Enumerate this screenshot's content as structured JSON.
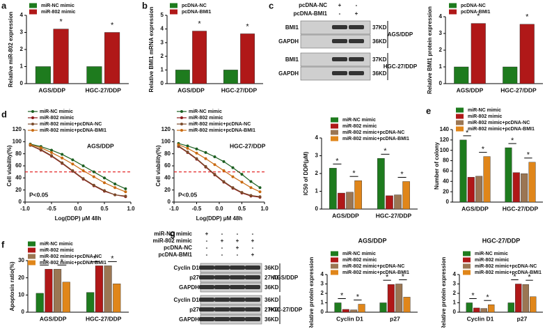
{
  "panel_labels": [
    "a",
    "b",
    "c",
    "d",
    "e",
    "f",
    "g"
  ],
  "chart_data": [
    {
      "type": "bar",
      "ylabel": "Relative miR-802 expression",
      "categories": [
        "AGS/DDP",
        "HGC-27/DDP"
      ],
      "ylim": [
        0,
        4
      ],
      "yticks": [
        0,
        1,
        2,
        3,
        4
      ],
      "series": [
        {
          "name": "miR-NC mimic",
          "color": "#1e7b1e",
          "values": [
            1,
            1
          ]
        },
        {
          "name": "miR-802 mimic",
          "color": "#b01818",
          "values": [
            3.2,
            3.0
          ]
        }
      ],
      "significance": [
        {
          "label": "*",
          "category": 0,
          "series": [
            1
          ]
        },
        {
          "label": "*",
          "category": 1,
          "series": [
            1
          ]
        }
      ]
    },
    {
      "type": "bar",
      "ylabel": "Relative BMI1 mRNA expression",
      "categories": [
        "AGS/DDP",
        "HGC-27/DDP"
      ],
      "ylim": [
        0,
        5
      ],
      "yticks": [
        0,
        1,
        2,
        3,
        4,
        5
      ],
      "series": [
        {
          "name": "pcDNA-NC",
          "color": "#1e7b1e",
          "values": [
            1,
            1
          ]
        },
        {
          "name": "pcDNA-BMI1",
          "color": "#b01818",
          "values": [
            3.85,
            3.65
          ]
        }
      ],
      "significance": [
        {
          "label": "*",
          "category": 0,
          "series": [
            1
          ]
        },
        {
          "label": "*",
          "category": 1,
          "series": [
            1
          ]
        }
      ]
    },
    {
      "type": "bar",
      "ylabel": "Relative BMI1 protein expression",
      "categories": [
        "AGS/DDP",
        "HGC-27/DDP"
      ],
      "ylim": [
        0,
        4
      ],
      "yticks": [
        0,
        1,
        2,
        3,
        4
      ],
      "series": [
        {
          "name": "pcDNA-NC",
          "color": "#1e7b1e",
          "values": [
            1,
            1
          ]
        },
        {
          "name": "pcDNA-BMI1",
          "color": "#b01818",
          "values": [
            3.6,
            3.55
          ]
        }
      ],
      "significance": [
        {
          "label": "*",
          "category": 0,
          "series": [
            1
          ]
        },
        {
          "label": "*",
          "category": 1,
          "series": [
            1
          ]
        }
      ]
    },
    {
      "type": "line",
      "ylabel": "Cell viability(%)",
      "xlabel": "Log(DDP) μM 48h",
      "annotations": [
        "AGS/DDP",
        "P<0.05"
      ],
      "x": [
        -0.9,
        -0.7,
        -0.5,
        -0.3,
        -0.1,
        0.1,
        0.3,
        0.5,
        0.7,
        0.9
      ],
      "xlim": [
        -1,
        1
      ],
      "xticks": [
        {
          "value": -1,
          "label": "-1.0"
        },
        -0.5,
        {
          "value": 0,
          "label": "0.0"
        },
        0.5,
        {
          "value": 1,
          "label": "1.0"
        }
      ],
      "ylim": [
        0,
        120
      ],
      "yticks": [
        0,
        20,
        40,
        60,
        80,
        100,
        120
      ],
      "hline": 50,
      "hline_color": "#e01010",
      "series": [
        {
          "name": "miR-NC mimic",
          "color": "#1b5e20",
          "values": [
            96,
            92,
            86,
            79,
            70,
            60,
            50,
            40,
            30,
            22
          ]
        },
        {
          "name": "miR-802 mimic",
          "color": "#8b1a1a",
          "values": [
            94,
            86,
            76,
            64,
            51,
            38,
            27,
            18,
            12,
            9
          ]
        },
        {
          "name": "miR-802 mimic+pcDNA-NC",
          "color": "#7a4a2a",
          "values": [
            94,
            87,
            77,
            65,
            52,
            39,
            28,
            19,
            12,
            10
          ]
        },
        {
          "name": "miR-802 mimic+pcDNA-BMI1",
          "color": "#c96a10",
          "values": [
            95,
            90,
            82,
            73,
            63,
            52,
            42,
            32,
            24,
            17
          ]
        }
      ]
    },
    {
      "type": "line",
      "ylabel": "Cell viability(%)",
      "xlabel": "Log(DDP) μM 48h",
      "annotations": [
        "HGC-27/DDP",
        "P<0.05"
      ],
      "x": [
        -0.9,
        -0.7,
        -0.5,
        -0.3,
        -0.1,
        0.1,
        0.3,
        0.5,
        0.7,
        0.9
      ],
      "xlim": [
        -1,
        1
      ],
      "xticks": [
        {
          "value": -1,
          "label": "-1.0"
        },
        -0.5,
        {
          "value": 0,
          "label": "0.0"
        },
        0.5,
        {
          "value": 1,
          "label": "1.0"
        }
      ],
      "ylim": [
        0,
        120
      ],
      "yticks": [
        0,
        20,
        40,
        60,
        80,
        100,
        120
      ],
      "hline": 50,
      "hline_color": "#e01010",
      "series": [
        {
          "name": "miR-NC mimic",
          "color": "#1b5e20",
          "values": [
            97,
            93,
            88,
            82,
            75,
            67,
            57,
            46,
            34,
            24
          ]
        },
        {
          "name": "miR-802 mimic",
          "color": "#8b1a1a",
          "values": [
            92,
            82,
            71,
            58,
            45,
            33,
            23,
            15,
            10,
            8
          ]
        },
        {
          "name": "miR-802 mimic+pcDNA-NC",
          "color": "#7a4a2a",
          "values": [
            93,
            83,
            72,
            59,
            46,
            34,
            24,
            16,
            11,
            9
          ]
        },
        {
          "name": "miR-802 mimic+pcDNA-BMI1",
          "color": "#c96a10",
          "values": [
            95,
            89,
            81,
            72,
            62,
            52,
            42,
            33,
            24,
            17
          ]
        }
      ]
    },
    {
      "type": "bar",
      "ylabel": "IC50 of DDP(μM)",
      "categories": [
        "AGS/DDP",
        "HGC-27/DDP"
      ],
      "ylim": [
        0,
        4
      ],
      "yticks": [
        0,
        1,
        2,
        3,
        4
      ],
      "series": [
        {
          "name": "miR-NC mimic",
          "color": "#1e7b1e",
          "values": [
            2.3,
            2.85
          ]
        },
        {
          "name": "miR-802 mimic",
          "color": "#b01818",
          "values": [
            0.9,
            0.75
          ]
        },
        {
          "name": "miR-802 mimic+pcDNA-NC",
          "color": "#9b7653",
          "values": [
            0.95,
            0.8
          ]
        },
        {
          "name": "miR-802 mimic+pcDNA-BMI1",
          "color": "#e0861a",
          "values": [
            1.6,
            1.55
          ]
        }
      ],
      "significance": [
        {
          "label": "*",
          "category": 0,
          "series": [
            0,
            1
          ]
        },
        {
          "label": "*",
          "category": 0,
          "series": [
            2,
            3
          ]
        },
        {
          "label": "*",
          "category": 1,
          "series": [
            0,
            1
          ]
        },
        {
          "label": "*",
          "category": 1,
          "series": [
            2,
            3
          ]
        }
      ]
    },
    {
      "type": "bar",
      "ylabel": "Number of colony",
      "categories": [
        "AGS/DDP",
        "HGC-27/DDP"
      ],
      "ylim": [
        0,
        140
      ],
      "yticks": [
        0,
        20,
        40,
        60,
        80,
        100,
        120,
        140
      ],
      "series": [
        {
          "name": "miR-NC mimic",
          "color": "#1e7b1e",
          "values": [
            120,
            105
          ]
        },
        {
          "name": "miR-802 mimic",
          "color": "#b01818",
          "values": [
            48,
            57
          ]
        },
        {
          "name": "miR-802 mimic+pcDNA-NC",
          "color": "#9b7653",
          "values": [
            50,
            55
          ]
        },
        {
          "name": "miR-802 mimic+pcDNA-BMI1",
          "color": "#e0861a",
          "values": [
            88,
            77
          ]
        }
      ],
      "significance": [
        {
          "label": "*",
          "category": 0,
          "series": [
            0,
            1
          ]
        },
        {
          "label": "*",
          "category": 0,
          "series": [
            2,
            3
          ]
        },
        {
          "label": "*",
          "category": 1,
          "series": [
            0,
            1
          ]
        },
        {
          "label": "*",
          "category": 1,
          "series": [
            2,
            3
          ]
        }
      ]
    },
    {
      "type": "bar",
      "ylabel": "Apoptosis ratio(%)",
      "categories": [
        "AGS/DDP",
        "HGC-27/DDP"
      ],
      "ylim": [
        0,
        30
      ],
      "yticks": [
        0,
        10,
        20,
        30
      ],
      "series": [
        {
          "name": "miR-NC mimic",
          "color": "#1e7b1e",
          "values": [
            11,
            11.5
          ]
        },
        {
          "name": "miR-802 mimic",
          "color": "#b01818",
          "values": [
            25,
            27
          ]
        },
        {
          "name": "miR-802 mimic+pcDNA-NC",
          "color": "#9b7653",
          "values": [
            25,
            27
          ]
        },
        {
          "name": "miR-802 mimic+pcDNA-BMI1",
          "color": "#e0861a",
          "values": [
            17.5,
            16.5
          ]
        }
      ],
      "significance": [
        {
          "label": "*",
          "category": 0,
          "series": [
            0,
            1
          ]
        },
        {
          "label": "*",
          "category": 0,
          "series": [
            2,
            3
          ]
        },
        {
          "label": "*",
          "category": 1,
          "series": [
            0,
            1
          ]
        },
        {
          "label": "*",
          "category": 1,
          "series": [
            2,
            3
          ]
        }
      ]
    },
    {
      "type": "bar",
      "title": "AGS/DDP",
      "ylabel": "Relative protein expression",
      "categories": [
        "Cyclin D1",
        "p27"
      ],
      "ylim": [
        0,
        4
      ],
      "yticks": [
        0,
        1,
        2,
        3,
        4
      ],
      "series": [
        {
          "name": "miR-NC mimic",
          "color": "#1e7b1e",
          "values": [
            1,
            1
          ]
        },
        {
          "name": "miR-802 mimic",
          "color": "#b01818",
          "values": [
            0.3,
            2.95
          ]
        },
        {
          "name": "miR-802 mimic+pcDNA-NC",
          "color": "#9b7653",
          "values": [
            0.25,
            3.0
          ]
        },
        {
          "name": "miR-802 mimic+pcDNA-BMI1",
          "color": "#e0861a",
          "values": [
            0.85,
            1.6
          ]
        }
      ],
      "significance": [
        {
          "label": "*",
          "category": 0,
          "series": [
            0,
            1
          ]
        },
        {
          "label": "*",
          "category": 0,
          "series": [
            2,
            3
          ]
        },
        {
          "label": "*",
          "category": 1,
          "series": [
            0,
            1
          ]
        },
        {
          "label": "*",
          "category": 1,
          "series": [
            2,
            3
          ]
        }
      ]
    },
    {
      "type": "bar",
      "title": "HGC-27/DDP",
      "ylabel": "Relative protein expression",
      "categories": [
        "Cyclin D1",
        "p27"
      ],
      "ylim": [
        0,
        4
      ],
      "yticks": [
        0,
        1,
        2,
        3,
        4
      ],
      "series": [
        {
          "name": "miR-NC mimic",
          "color": "#1e7b1e",
          "values": [
            1,
            1
          ]
        },
        {
          "name": "miR-802 mimic",
          "color": "#b01818",
          "values": [
            0.45,
            3.0
          ]
        },
        {
          "name": "miR-802 mimic+pcDNA-NC",
          "color": "#9b7653",
          "values": [
            0.4,
            2.95
          ]
        },
        {
          "name": "miR-802 mimic+pcDNA-BMI1",
          "color": "#e0861a",
          "values": [
            0.8,
            1.65
          ]
        }
      ],
      "significance": [
        {
          "label": "*",
          "category": 0,
          "series": [
            0,
            1
          ]
        },
        {
          "label": "*",
          "category": 0,
          "series": [
            2,
            3
          ]
        },
        {
          "label": "*",
          "category": 1,
          "series": [
            0,
            1
          ]
        },
        {
          "label": "*",
          "category": 1,
          "series": [
            2,
            3
          ]
        }
      ]
    }
  ],
  "blots": [
    {
      "headers": [
        {
          "label": "pcDNA-NC",
          "signs": [
            "+",
            "-"
          ]
        },
        {
          "label": "pcDNA-BMI1",
          "signs": [
            "-",
            "+"
          ]
        }
      ],
      "groups": [
        {
          "name": "AGS/DDP",
          "rows": [
            {
              "protein": "BMI1",
              "size": "37KD"
            },
            {
              "protein": "GAPDH",
              "size": "36KD"
            }
          ]
        },
        {
          "name": "HGC-27/DDP",
          "rows": [
            {
              "protein": "BMI1",
              "size": "37KD"
            },
            {
              "protein": "GAPDH",
              "size": "36KD"
            }
          ]
        }
      ]
    },
    {
      "headers": [
        {
          "label": "miR-NC mimic",
          "signs": [
            "+",
            "-",
            "-",
            "-"
          ]
        },
        {
          "label": "miR-802 mimic",
          "signs": [
            "-",
            "+",
            "+",
            "+"
          ]
        },
        {
          "label": "pcDNA-NC",
          "signs": [
            "-",
            "-",
            "+",
            "-"
          ]
        },
        {
          "label": "pcDNA-BMI1",
          "signs": [
            "-",
            "-",
            "-",
            "+"
          ]
        }
      ],
      "groups": [
        {
          "name": "AGS/DDP",
          "rows": [
            {
              "protein": "Cyclin D1",
              "size": "36KD"
            },
            {
              "protein": "p27",
              "size": "27KD"
            },
            {
              "protein": "GAPDH",
              "size": "36KD"
            }
          ]
        },
        {
          "name": "HGC-27/DDP",
          "rows": [
            {
              "protein": "Cyclin D1",
              "size": "36KD"
            },
            {
              "protein": "p27",
              "size": "27KD"
            },
            {
              "protein": "GAPDH",
              "size": "36KD"
            }
          ]
        }
      ]
    }
  ]
}
